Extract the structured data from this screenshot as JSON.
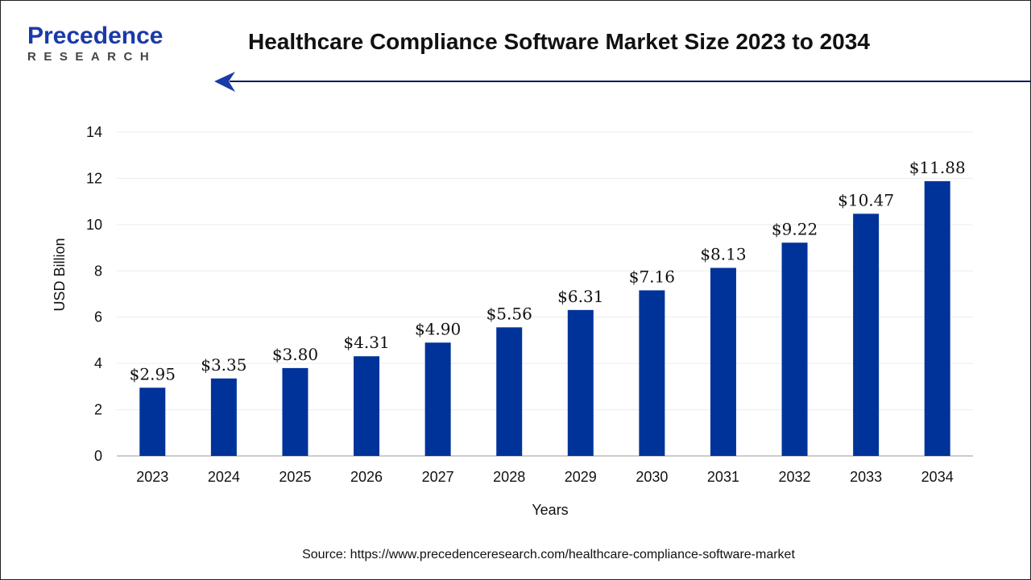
{
  "logo": {
    "brand_top": "Precedence",
    "brand_bottom": "RESEARCH"
  },
  "colors": {
    "bar": "#003399",
    "arrow": "#0a1a5e",
    "logo_blue": "#1a3aa8"
  },
  "source": "Source: https://www.precedenceresearch.com/healthcare-compliance-software-market",
  "chart_data": {
    "type": "bar",
    "title": "Healthcare Compliance Software Market Size 2023 to 2034",
    "xlabel": "Years",
    "ylabel": "USD Billion",
    "ylim": [
      0,
      14
    ],
    "yticks": [
      0,
      2,
      4,
      6,
      8,
      10,
      12,
      14
    ],
    "grid": true,
    "categories": [
      "2023",
      "2024",
      "2025",
      "2026",
      "2027",
      "2028",
      "2029",
      "2030",
      "2031",
      "2032",
      "2033",
      "2034"
    ],
    "values": [
      2.95,
      3.35,
      3.8,
      4.31,
      4.9,
      5.56,
      6.31,
      7.16,
      8.13,
      9.22,
      10.47,
      11.88
    ],
    "data_labels": [
      "$2.95",
      "$3.35",
      "$3.80",
      "$4.31",
      "$4.90",
      "$5.56",
      "$6.31",
      "$7.16",
      "$8.13",
      "$9.22",
      "$10.47",
      "$11.88"
    ]
  }
}
